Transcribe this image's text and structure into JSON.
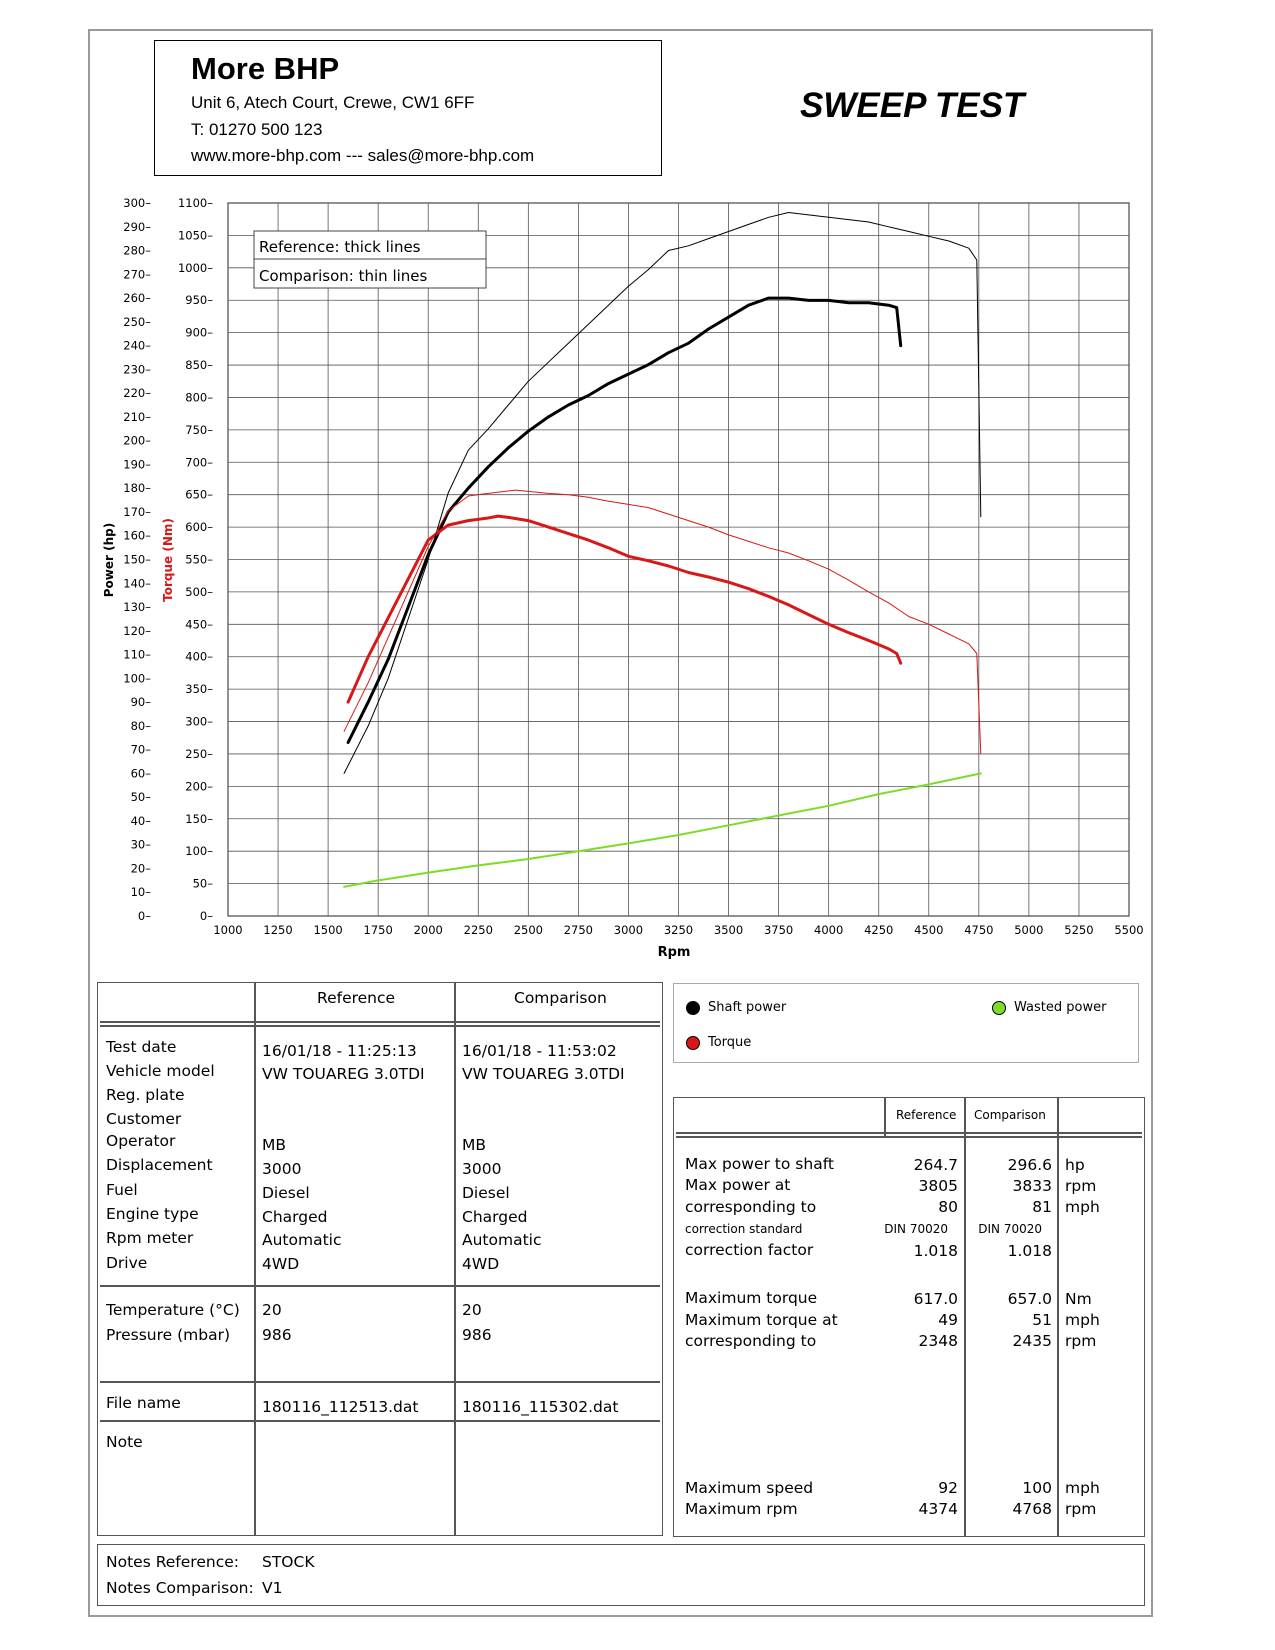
{
  "header": {
    "company": "More BHP",
    "address": "Unit 6, Atech Court, Crewe, CW1 6FF",
    "phone": "T: 01270 500 123",
    "web": "www.more-bhp.com --- sales@more-bhp.com",
    "title": "SWEEP TEST"
  },
  "chart_data": {
    "type": "line",
    "xlabel": "Rpm",
    "ylabel_left": "Power (hp)",
    "ylabel_right": "Torque (Nm)",
    "x_ticks": [
      "1000",
      "1250",
      "1500",
      "1750",
      "2000",
      "2250",
      "2500",
      "2750",
      "3000",
      "3250",
      "3500",
      "3750",
      "4000",
      "4250",
      "4500",
      "4750",
      "5000",
      "5250",
      "5500"
    ],
    "power_ticks": [
      "0",
      "10",
      "20",
      "30",
      "40",
      "50",
      "60",
      "70",
      "80",
      "90",
      "100",
      "110",
      "120",
      "130",
      "140",
      "150",
      "160",
      "170",
      "180",
      "190",
      "200",
      "210",
      "220",
      "230",
      "240",
      "250",
      "260",
      "270",
      "280",
      "290",
      "300"
    ],
    "torque_ticks": [
      "0",
      "50",
      "100",
      "150",
      "200",
      "250",
      "300",
      "350",
      "400",
      "450",
      "500",
      "550",
      "600",
      "650",
      "700",
      "750",
      "800",
      "850",
      "900",
      "950",
      "1000",
      "1050",
      "1100"
    ],
    "xlim": [
      1000,
      5500
    ],
    "power_lim": [
      0,
      300
    ],
    "torque_lim": [
      0,
      1100
    ],
    "grid": true,
    "line_key": [
      "Reference: thick lines",
      "Comparison: thin lines"
    ],
    "series": [
      {
        "name": "Shaft power",
        "variant": "Reference",
        "color": "#000000",
        "axis": "power",
        "width": 3,
        "x": [
          1600,
          1700,
          1800,
          1900,
          2000,
          2100,
          2200,
          2300,
          2400,
          2500,
          2600,
          2700,
          2800,
          2900,
          3000,
          3100,
          3200,
          3300,
          3400,
          3500,
          3600,
          3700,
          3800,
          3900,
          4000,
          4100,
          4200,
          4300,
          4340,
          4360
        ],
        "y": [
          73,
          90,
          108,
          130,
          152,
          170,
          180,
          189,
          197,
          204,
          210,
          215,
          219,
          224,
          228,
          232,
          237,
          241,
          247,
          252,
          257,
          260,
          260,
          259,
          259,
          258,
          258,
          257,
          256,
          240
        ]
      },
      {
        "name": "Torque",
        "variant": "Reference",
        "color": "#d81818",
        "axis": "torque",
        "width": 3,
        "x": [
          1600,
          1700,
          1800,
          1900,
          2000,
          2100,
          2200,
          2300,
          2348,
          2400,
          2500,
          2600,
          2700,
          2800,
          2900,
          3000,
          3100,
          3200,
          3300,
          3400,
          3500,
          3600,
          3700,
          3800,
          3900,
          4000,
          4100,
          4200,
          4300,
          4340,
          4360
        ],
        "y": [
          330,
          400,
          460,
          520,
          580,
          603,
          610,
          614,
          617,
          615,
          610,
          600,
          590,
          580,
          568,
          555,
          548,
          540,
          530,
          523,
          515,
          505,
          493,
          480,
          465,
          450,
          437,
          425,
          412,
          405,
          390
        ]
      },
      {
        "name": "Shaft power",
        "variant": "Comparison",
        "color": "#000000",
        "axis": "power",
        "width": 1,
        "x": [
          1580,
          1700,
          1800,
          1900,
          2000,
          2100,
          2200,
          2300,
          2400,
          2500,
          2600,
          2700,
          2800,
          2900,
          3000,
          3100,
          3200,
          3300,
          3400,
          3500,
          3600,
          3700,
          3800,
          3900,
          4000,
          4100,
          4200,
          4300,
          4400,
          4500,
          4600,
          4700,
          4740,
          4760
        ],
        "y": [
          60,
          80,
          100,
          125,
          150,
          178,
          196,
          205,
          215,
          225,
          233,
          241,
          249,
          257,
          265,
          272,
          280,
          282,
          285,
          288,
          291,
          294,
          296,
          295,
          294,
          293,
          292,
          290,
          288,
          286,
          284,
          281,
          276,
          168
        ]
      },
      {
        "name": "Torque",
        "variant": "Comparison",
        "color": "#d81818",
        "axis": "torque",
        "width": 1,
        "x": [
          1580,
          1700,
          1800,
          1900,
          2000,
          2100,
          2200,
          2300,
          2435,
          2500,
          2600,
          2700,
          2800,
          2900,
          3000,
          3100,
          3200,
          3300,
          3400,
          3500,
          3600,
          3700,
          3800,
          3900,
          4000,
          4100,
          4200,
          4300,
          4400,
          4500,
          4600,
          4700,
          4740,
          4760
        ],
        "y": [
          285,
          360,
          430,
          500,
          570,
          625,
          648,
          652,
          657,
          655,
          652,
          650,
          646,
          640,
          635,
          630,
          620,
          610,
          600,
          588,
          578,
          568,
          560,
          548,
          535,
          518,
          500,
          483,
          462,
          450,
          435,
          420,
          405,
          250
        ]
      },
      {
        "name": "Wasted power",
        "variant": "Comparison",
        "color": "#7ddc2a",
        "axis": "torque",
        "width": 2,
        "x": [
          1580,
          1750,
          2000,
          2250,
          2500,
          2750,
          3000,
          3250,
          3500,
          3750,
          4000,
          4250,
          4500,
          4760
        ],
        "y": [
          45,
          55,
          67,
          78,
          88,
          100,
          112,
          125,
          140,
          155,
          170,
          188,
          203,
          220
        ]
      }
    ]
  },
  "legend": {
    "shaft_power": "Shaft power",
    "torque": "Torque",
    "wasted_power": "Wasted power"
  },
  "info_table": {
    "col_reference": "Reference",
    "col_comparison": "Comparison",
    "labels": [
      "Test date",
      "Vehicle model",
      "Reg. plate",
      "Customer",
      "Operator",
      "Displacement",
      "Fuel",
      "Engine type",
      "Rpm meter",
      "Drive"
    ],
    "reference": {
      "test_date": "16/01/18 - 11:25:13",
      "vehicle_model": "VW TOUAREG 3.0TDI",
      "operator": "MB",
      "displacement": "3000",
      "fuel": "Diesel",
      "engine_type": "Charged",
      "rpm_meter": "Automatic",
      "drive": "4WD",
      "temperature": "20",
      "pressure": "986",
      "file": "180116_112513.dat"
    },
    "comparison": {
      "test_date": "16/01/18 - 11:53:02",
      "vehicle_model": "VW TOUAREG 3.0TDI",
      "operator": "MB",
      "displacement": "3000",
      "fuel": "Diesel",
      "engine_type": "Charged",
      "rpm_meter": "Automatic",
      "drive": "4WD",
      "temperature": "20",
      "pressure": "986",
      "file": "180116_115302.dat"
    },
    "temperature_label": "Temperature (°C)",
    "pressure_label": "Pressure (mbar)",
    "file_label": "File name",
    "note_label": "Note"
  },
  "results": {
    "col_reference": "Reference",
    "col_comparison": "Comparison",
    "max_power_label": "Max power to shaft",
    "max_power_at_label": "Max power at",
    "corresponding_label": "corresponding to",
    "correction_standard_label": "correction standard",
    "correction_factor_label": "correction factor",
    "max_torque_label": "Maximum torque",
    "max_torque_at_label": "Maximum torque at",
    "torque_corresponding_label": "corresponding to",
    "max_speed_label": "Maximum speed",
    "max_rpm_label": "Maximum rpm",
    "ref": {
      "max_power": "264.7",
      "max_power_rpm": "3805",
      "power_speed": "80",
      "standard": "DIN 70020",
      "factor": "1.018",
      "max_torque": "617.0",
      "torque_speed": "49",
      "torque_rpm": "2348",
      "max_speed": "92",
      "max_rpm": "4374"
    },
    "cmp": {
      "max_power": "296.6",
      "max_power_rpm": "3833",
      "power_speed": "81",
      "standard": "DIN 70020",
      "factor": "1.018",
      "max_torque": "657.0",
      "torque_speed": "51",
      "torque_rpm": "2435",
      "max_speed": "100",
      "max_rpm": "4768"
    },
    "units": {
      "hp": "hp",
      "rpm": "rpm",
      "mph": "mph",
      "nm": "Nm"
    }
  },
  "notes": {
    "ref_label": "Notes Reference:",
    "ref_value": "STOCK",
    "cmp_label": "Notes Comparison:",
    "cmp_value": "V1"
  }
}
